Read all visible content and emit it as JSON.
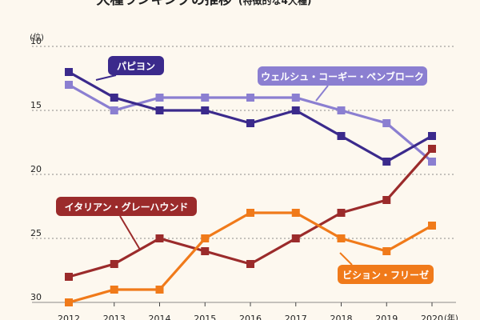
{
  "colors": {
    "background": "#fdf8ef",
    "grid": "#8a8a8a",
    "papillon": "#3b2a8c",
    "welsh_corgi_pembroke": "#8b7fd1",
    "italian_greyhound": "#9b2b2b",
    "bichon_frise": "#f07a1a"
  },
  "chart_data": {
    "type": "line",
    "title": "犬種ランキングの推移",
    "subtitle": "(特徴的な4犬種)",
    "ylabel": "(位)",
    "xlabel": "(年)",
    "y_inverted": true,
    "ylim": [
      10,
      30
    ],
    "yticks": [
      10,
      15,
      20,
      25,
      30
    ],
    "x": [
      "2012",
      "2013",
      "2014",
      "2015",
      "2016",
      "2017",
      "2018",
      "2019",
      "2020"
    ],
    "grid": "horizontal dotted",
    "series": [
      {
        "name": "パピヨン",
        "color": "#3b2a8c",
        "values": [
          12,
          14,
          15,
          15,
          16,
          15,
          17,
          19,
          17
        ]
      },
      {
        "name": "ウェルシュ・コーギー・ペンブローク",
        "color": "#8b7fd1",
        "values": [
          13,
          15,
          14,
          14,
          14,
          14,
          15,
          16,
          19
        ]
      },
      {
        "name": "イタリアン・グレーハウンド",
        "color": "#9b2b2b",
        "values": [
          28,
          27,
          25,
          26,
          27,
          25,
          23,
          22,
          18
        ]
      },
      {
        "name": "ビション・フリーゼ",
        "color": "#f07a1a",
        "values": [
          30,
          29,
          29,
          25,
          23,
          23,
          25,
          26,
          24
        ]
      }
    ]
  }
}
